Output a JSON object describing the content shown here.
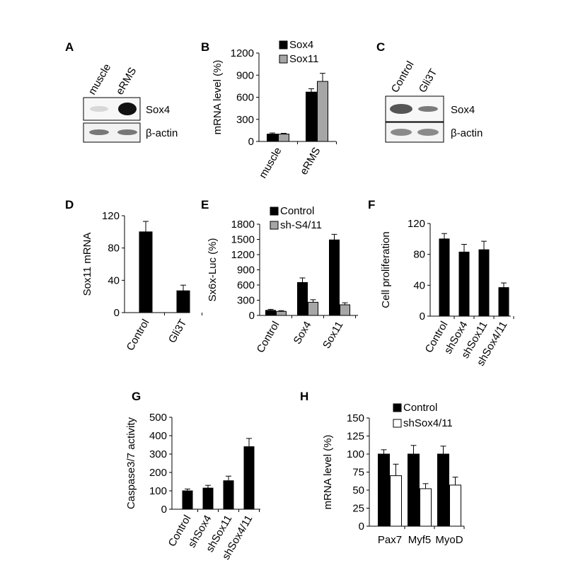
{
  "figure": {
    "panel_letters": [
      "A",
      "B",
      "C",
      "D",
      "E",
      "F",
      "G",
      "H"
    ]
  },
  "blots": [
    {
      "panel": "A",
      "lanes": [
        "muscle",
        "eRMS"
      ],
      "rows": [
        "Sox4",
        "β-actin"
      ]
    },
    {
      "panel": "C",
      "lanes": [
        "Control",
        "Gli3T"
      ],
      "rows": [
        "Sox4",
        "β-actin"
      ]
    }
  ],
  "colors": {
    "black": "#000000",
    "gray": "#a6a6a6",
    "white": "#ffffff"
  },
  "chart_data": [
    {
      "panel": "B",
      "type": "bar",
      "categories": [
        "muscle",
        "eRMS"
      ],
      "ylabel": "mRNA level (%)",
      "xlabel": "",
      "ylim": [
        0,
        1200
      ],
      "yticks": [
        0,
        300,
        600,
        900,
        1200
      ],
      "legend": "top-left",
      "series": [
        {
          "name": "Sox4",
          "color": "#000000",
          "values": [
            100,
            670
          ],
          "errors": [
            15,
            45
          ]
        },
        {
          "name": "Sox11",
          "color": "#a6a6a6",
          "values": [
            100,
            815
          ],
          "errors": [
            10,
            110
          ]
        }
      ]
    },
    {
      "panel": "D",
      "type": "bar",
      "categories": [
        "Control",
        "Gli3T"
      ],
      "ylabel": "Sox11 mRNA",
      "xlabel": "",
      "ylim": [
        0,
        120
      ],
      "yticks": [
        0,
        40,
        80,
        120
      ],
      "series": [
        {
          "name": "",
          "color": "#000000",
          "values": [
            100,
            27
          ],
          "errors": [
            13,
            7
          ]
        }
      ]
    },
    {
      "panel": "E",
      "type": "bar",
      "categories": [
        "Control",
        "Sox4",
        "Sox11"
      ],
      "ylabel": "Sx6x-Luc (%)",
      "xlabel": "",
      "ylim": [
        0,
        1800
      ],
      "yticks": [
        0,
        300,
        600,
        900,
        1200,
        1500,
        1800
      ],
      "legend": "top-left",
      "series": [
        {
          "name": "Control",
          "color": "#000000",
          "values": [
            100,
            650,
            1490
          ],
          "errors": [
            20,
            90,
            110
          ]
        },
        {
          "name": "sh-S4/11",
          "color": "#a6a6a6",
          "values": [
            80,
            260,
            210
          ],
          "errors": [
            15,
            50,
            40
          ]
        }
      ]
    },
    {
      "panel": "F",
      "type": "bar",
      "categories": [
        "Control",
        "shSox4",
        "shSox11",
        "shSox4/11"
      ],
      "ylabel": "Cell proliferation",
      "xlabel": "",
      "ylim": [
        0,
        120
      ],
      "yticks": [
        0,
        40,
        80,
        120
      ],
      "series": [
        {
          "name": "",
          "color": "#000000",
          "values": [
            100,
            83,
            86,
            37
          ],
          "errors": [
            7,
            10,
            11,
            6
          ]
        }
      ]
    },
    {
      "panel": "G",
      "type": "bar",
      "categories": [
        "Control",
        "shSox4",
        "shSox11",
        "shSox4/11"
      ],
      "ylabel": "Caspase3/7 activity",
      "xlabel": "",
      "ylim": [
        0,
        500
      ],
      "yticks": [
        0,
        100,
        200,
        300,
        400,
        500
      ],
      "series": [
        {
          "name": "",
          "color": "#000000",
          "values": [
            100,
            115,
            155,
            340
          ],
          "errors": [
            10,
            15,
            25,
            45
          ]
        }
      ]
    },
    {
      "panel": "H",
      "type": "bar",
      "categories": [
        "Pax7",
        "Myf5",
        "MyoD"
      ],
      "ylabel": "mRNA level (%)",
      "xlabel": "",
      "ylim": [
        0,
        150
      ],
      "yticks": [
        0,
        25,
        50,
        75,
        100,
        125,
        150
      ],
      "legend": "top-left",
      "series": [
        {
          "name": "Control",
          "color": "#000000",
          "values": [
            100,
            100,
            100
          ],
          "errors": [
            6,
            12,
            11
          ]
        },
        {
          "name": "shSox4/11",
          "color": "#ffffff",
          "values": [
            70,
            52,
            57
          ],
          "errors": [
            16,
            7,
            11
          ]
        }
      ]
    }
  ]
}
